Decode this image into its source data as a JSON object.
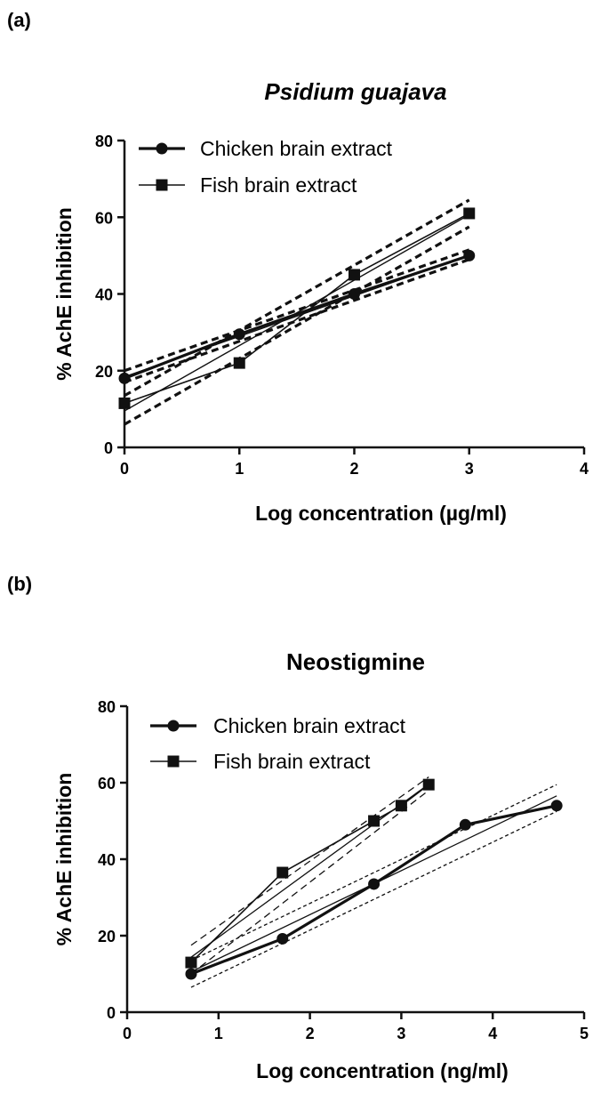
{
  "chart_data": [
    {
      "panel_label": "(a)",
      "type": "line",
      "title": "Psidium guajava",
      "xlabel": "Log concentration (µg/ml)",
      "ylabel": "% AchE inhibition",
      "xlim": [
        0,
        4
      ],
      "ylim": [
        0,
        80
      ],
      "xticks": [
        "0",
        "1",
        "2",
        "3",
        "4"
      ],
      "yticks": [
        "0",
        "20",
        "40",
        "60",
        "80"
      ],
      "legend_position": "top-left",
      "series": [
        {
          "name": "Chicken brain extract",
          "marker": "circle",
          "x": [
            0,
            1,
            2,
            3
          ],
          "y": [
            18,
            29.5,
            40,
            50
          ],
          "fit": {
            "slope": 10.55,
            "intercept": 18.4
          },
          "ci_lower": [
            {
              "x": 0,
              "y": 17
            },
            {
              "x": 3,
              "y": 49
            }
          ],
          "ci_upper": [
            {
              "x": 0,
              "y": 20
            },
            {
              "x": 3,
              "y": 51.5
            }
          ]
        },
        {
          "name": "Fish brain extract",
          "marker": "square",
          "x": [
            0,
            1,
            2,
            3
          ],
          "y": [
            11.5,
            22,
            45,
            61
          ],
          "fit": {
            "slope": 17.05,
            "intercept": 9.5
          },
          "ci_lower": [
            {
              "x": 0,
              "y": 6
            },
            {
              "x": 3,
              "y": 57.5
            }
          ],
          "ci_upper": [
            {
              "x": 0,
              "y": 13.5
            },
            {
              "x": 3,
              "y": 64.5
            }
          ]
        }
      ]
    },
    {
      "panel_label": "(b)",
      "type": "line",
      "title": "Neostigmine",
      "xlabel": "Log concentration (ng/ml)",
      "ylabel": "% AchE inhibition",
      "xlim": [
        0,
        5
      ],
      "ylim": [
        0,
        80
      ],
      "xticks": [
        "0",
        "1",
        "2",
        "3",
        "4",
        "5"
      ],
      "yticks": [
        "0",
        "20",
        "40",
        "60",
        "80"
      ],
      "legend_position": "top-left",
      "series": [
        {
          "name": "Chicken brain extract",
          "marker": "circle",
          "x": [
            0.7,
            1.7,
            2.7,
            3.7,
            4.7
          ],
          "y": [
            10,
            19.2,
            33.5,
            49,
            54
          ],
          "fit": {
            "slope": 11.5,
            "intercept": 2.5
          },
          "ci_lower": [
            {
              "x": 0.7,
              "y": 6.5
            },
            {
              "x": 4.7,
              "y": 52.5
            }
          ],
          "ci_upper": [
            {
              "x": 0.7,
              "y": 13.5
            },
            {
              "x": 4.7,
              "y": 59.5
            }
          ]
        },
        {
          "name": "Fish brain extract",
          "marker": "square",
          "x": [
            0.7,
            1.7,
            2.7,
            3.0,
            3.3
          ],
          "y": [
            13,
            36.5,
            50,
            54,
            59.5
          ],
          "fit": {
            "slope": 17.4,
            "intercept": 2.2
          },
          "ci_lower": [
            {
              "x": 0.7,
              "y": 10
            },
            {
              "x": 3.3,
              "y": 58
            }
          ],
          "ci_upper": [
            {
              "x": 0.7,
              "y": 17.5
            },
            {
              "x": 3.3,
              "y": 61.5
            }
          ]
        }
      ]
    }
  ]
}
